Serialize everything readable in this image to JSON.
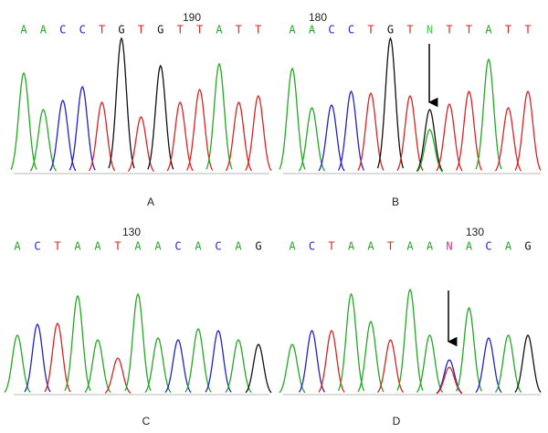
{
  "panels": [
    {
      "position": "190",
      "label": "A",
      "bases": [
        {
          "base": "A",
          "color": "#22aa22"
        },
        {
          "base": "A",
          "color": "#22aa22"
        },
        {
          "base": "C",
          "color": "#2222cc"
        },
        {
          "base": "C",
          "color": "#2222cc"
        },
        {
          "base": "T",
          "color": "#dd2222"
        },
        {
          "base": "G",
          "color": "#111111"
        },
        {
          "base": "T",
          "color": "#dd2222"
        },
        {
          "base": "G",
          "color": "#111111"
        },
        {
          "base": "T",
          "color": "#dd2222"
        },
        {
          "base": "T",
          "color": "#dd2222"
        },
        {
          "base": "A",
          "color": "#22aa22"
        },
        {
          "base": "T",
          "color": "#dd2222"
        },
        {
          "base": "T",
          "color": "#dd2222"
        }
      ]
    },
    {
      "position": "180",
      "label": "B",
      "bases": [
        {
          "base": "A",
          "color": "#22aa22"
        },
        {
          "base": "A",
          "color": "#22aa22"
        },
        {
          "base": "C",
          "color": "#2222cc"
        },
        {
          "base": "C",
          "color": "#2222cc"
        },
        {
          "base": "T",
          "color": "#dd2222"
        },
        {
          "base": "G",
          "color": "#111111"
        },
        {
          "base": "T",
          "color": "#dd2222"
        },
        {
          "base": "N",
          "color": "#44cc44"
        },
        {
          "base": "T",
          "color": "#dd2222"
        },
        {
          "base": "T",
          "color": "#dd2222"
        },
        {
          "base": "A",
          "color": "#22aa22"
        },
        {
          "base": "T",
          "color": "#dd2222"
        },
        {
          "base": "T",
          "color": "#dd2222"
        }
      ]
    },
    {
      "position": "130",
      "label": "C",
      "bases": [
        {
          "base": "A",
          "color": "#22aa22"
        },
        {
          "base": "C",
          "color": "#2222cc"
        },
        {
          "base": "T",
          "color": "#dd2222"
        },
        {
          "base": "A",
          "color": "#22aa22"
        },
        {
          "base": "A",
          "color": "#22aa22"
        },
        {
          "base": "T",
          "color": "#dd2222"
        },
        {
          "base": "A",
          "color": "#22aa22"
        },
        {
          "base": "A",
          "color": "#22aa22"
        },
        {
          "base": "C",
          "color": "#2222cc"
        },
        {
          "base": "A",
          "color": "#22aa22"
        },
        {
          "base": "C",
          "color": "#2222cc"
        },
        {
          "base": "A",
          "color": "#22aa22"
        },
        {
          "base": "G",
          "color": "#111111"
        }
      ]
    },
    {
      "position": "130",
      "label": "D",
      "bases": [
        {
          "base": "A",
          "color": "#22aa22"
        },
        {
          "base": "C",
          "color": "#2222cc"
        },
        {
          "base": "T",
          "color": "#dd2222"
        },
        {
          "base": "A",
          "color": "#22aa22"
        },
        {
          "base": "A",
          "color": "#22aa22"
        },
        {
          "base": "T",
          "color": "#dd2222"
        },
        {
          "base": "A",
          "color": "#22aa22"
        },
        {
          "base": "A",
          "color": "#22aa22"
        },
        {
          "base": "N",
          "color": "#cc3388"
        },
        {
          "base": "A",
          "color": "#22aa22"
        },
        {
          "base": "C",
          "color": "#2222cc"
        },
        {
          "base": "A",
          "color": "#22aa22"
        },
        {
          "base": "G",
          "color": "#111111"
        }
      ]
    }
  ]
}
